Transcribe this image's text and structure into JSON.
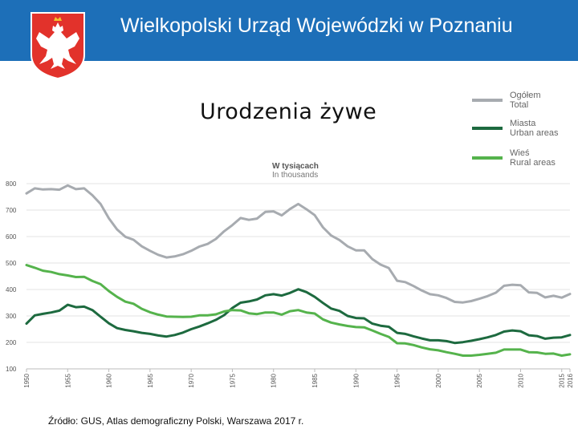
{
  "header": {
    "title": "Wielkopolski Urząd Wojewódzki w Poznaniu",
    "bg_color": "#1d6fb8",
    "logo": "polish-eagle-crest-icon"
  },
  "slide_title": "Urodzenia żywe",
  "source": "Źródło: GUS, Atlas demograficzny Polski, Warszawa 2017 r.",
  "legend": [
    {
      "label_pl": "Ogółem",
      "label_en": "Total",
      "color": "#a7abb0"
    },
    {
      "label_pl": "Miasta",
      "label_en": "Urban areas",
      "color": "#1d6a3f"
    },
    {
      "label_pl": "Wieś",
      "label_en": "Rural areas",
      "color": "#55b34c"
    }
  ],
  "chart_data": {
    "type": "line",
    "unit_pl": "W tysiącach",
    "unit_en": "In thousands",
    "ylim": [
      100,
      800
    ],
    "y_ticks": [
      100,
      200,
      300,
      400,
      500,
      600,
      700,
      800
    ],
    "xlim": [
      1950,
      2016
    ],
    "x_ticks": [
      "1950",
      "1955",
      "1960",
      "1965",
      "1970",
      "1975",
      "1980",
      "1985",
      "1990",
      "1995",
      "2000",
      "2005",
      "2010",
      "2015",
      "2016"
    ],
    "grid": true,
    "x": [
      1950,
      1951,
      1952,
      1953,
      1954,
      1955,
      1956,
      1957,
      1958,
      1959,
      1960,
      1961,
      1962,
      1963,
      1964,
      1965,
      1966,
      1967,
      1968,
      1969,
      1970,
      1971,
      1972,
      1973,
      1974,
      1975,
      1976,
      1977,
      1978,
      1979,
      1980,
      1981,
      1982,
      1983,
      1984,
      1985,
      1986,
      1987,
      1988,
      1989,
      1990,
      1991,
      1992,
      1993,
      1994,
      1995,
      1996,
      1997,
      1998,
      1999,
      2000,
      2001,
      2002,
      2003,
      2004,
      2005,
      2006,
      2007,
      2008,
      2009,
      2010,
      2011,
      2012,
      2013,
      2014,
      2015,
      2016
    ],
    "series": [
      {
        "name": "Ogółem",
        "color": "#a7abb0",
        "values": [
          763,
          782,
          778,
          779,
          777,
          793,
          779,
          782,
          756,
          723,
          669,
          627,
          599,
          588,
          563,
          546,
          531,
          521,
          525,
          533,
          546,
          562,
          572,
          591,
          620,
          643,
          670,
          663,
          668,
          693,
          695,
          680,
          704,
          723,
          703,
          681,
          635,
          604,
          587,
          563,
          548,
          548,
          515,
          494,
          481,
          433,
          428,
          413,
          396,
          382,
          378,
          368,
          353,
          351,
          356,
          365,
          375,
          388,
          414,
          418,
          416,
          389,
          387,
          370,
          376,
          369,
          383
        ]
      },
      {
        "name": "Miasta",
        "color": "#1d6a3f",
        "values": [
          271,
          302,
          308,
          313,
          320,
          342,
          333,
          335,
          322,
          297,
          272,
          254,
          247,
          242,
          236,
          232,
          226,
          222,
          228,
          237,
          250,
          260,
          272,
          285,
          303,
          330,
          350,
          355,
          362,
          378,
          382,
          377,
          387,
          401,
          390,
          372,
          349,
          328,
          319,
          300,
          292,
          291,
          271,
          263,
          259,
          236,
          232,
          223,
          215,
          208,
          208,
          205,
          198,
          201,
          206,
          212,
          219,
          228,
          241,
          245,
          242,
          227,
          224,
          214,
          218,
          219,
          228
        ]
      },
      {
        "name": "Wieś",
        "color": "#55b34c",
        "values": [
          492,
          482,
          471,
          466,
          458,
          453,
          447,
          448,
          432,
          420,
          394,
          372,
          354,
          346,
          327,
          314,
          305,
          298,
          297,
          296,
          297,
          302,
          302,
          306,
          317,
          322,
          321,
          310,
          307,
          313,
          313,
          305,
          318,
          322,
          313,
          309,
          287,
          275,
          268,
          262,
          258,
          257,
          245,
          232,
          221,
          197,
          196,
          190,
          181,
          174,
          170,
          163,
          157,
          150,
          150,
          153,
          157,
          161,
          173,
          173,
          173,
          163,
          162,
          157,
          158,
          150,
          155
        ]
      }
    ]
  }
}
